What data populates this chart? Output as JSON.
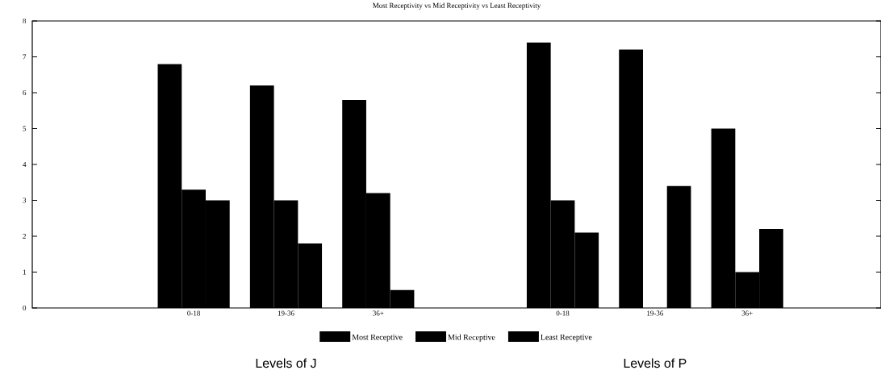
{
  "chart_data": {
    "type": "bar",
    "title": "Most Receptivity vs Mid Receptivity vs Least Receptivity",
    "categories": [
      null,
      "0-18",
      "19-36",
      "36+",
      null,
      "0-18",
      "19-36",
      "36+",
      null
    ],
    "series": [
      {
        "name": "Most Receptive",
        "color": "#000000",
        "values": [
          null,
          6.8,
          6.2,
          5.8,
          null,
          7.4,
          7.2,
          5.0,
          null
        ]
      },
      {
        "name": "Mid Receptive",
        "color": "#000000",
        "values": [
          null,
          3.3,
          3.0,
          3.2,
          null,
          3.0,
          null,
          1.0,
          null
        ]
      },
      {
        "name": "Least Receptive",
        "color": "#000000",
        "values": [
          null,
          3.0,
          1.8,
          0.5,
          null,
          2.1,
          3.4,
          2.2,
          null
        ]
      }
    ],
    "ylim": [
      0,
      8
    ],
    "yticks": [
      0,
      1,
      2,
      3,
      4,
      5,
      6,
      7,
      8
    ],
    "legend": "bottom",
    "annotations": [
      "Levels of J",
      "Levels of P"
    ]
  }
}
